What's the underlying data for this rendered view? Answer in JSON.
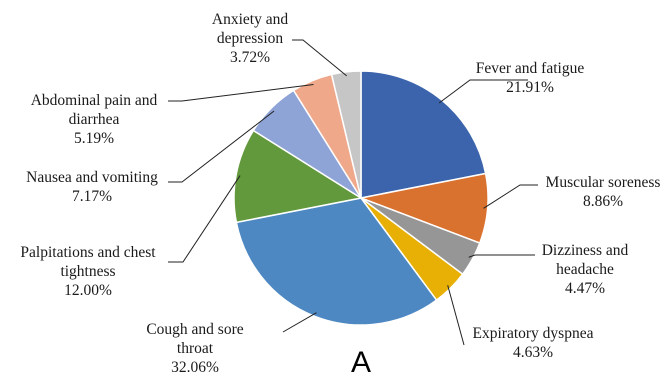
{
  "chart_data": {
    "type": "pie",
    "panel_label": "A",
    "slices": [
      {
        "label": [
          "Fever and fatigue"
        ],
        "value": 21.91,
        "value_label": "21.91%",
        "color": "#3b64ad"
      },
      {
        "label": [
          "Muscular soreness"
        ],
        "value": 8.86,
        "value_label": "8.86%",
        "color": "#d9712f"
      },
      {
        "label": [
          "Dizziness and",
          "headache"
        ],
        "value": 4.47,
        "value_label": "4.47%",
        "color": "#969696"
      },
      {
        "label": [
          "Expiratory dyspnea"
        ],
        "value": 4.63,
        "value_label": "4.63%",
        "color": "#e8b005"
      },
      {
        "label": [
          "Cough and sore",
          "throat"
        ],
        "value": 32.06,
        "value_label": "32.06%",
        "color": "#4e88c2"
      },
      {
        "label": [
          "Palpitations and chest",
          "tightness"
        ],
        "value": 12.0,
        "value_label": "12.00%",
        "color": "#63993d"
      },
      {
        "label": [
          "Nausea and vomiting"
        ],
        "value": 7.17,
        "value_label": "7.17%",
        "color": "#8ea3d6"
      },
      {
        "label": [
          "Abdominal pain and",
          "diarrhea"
        ],
        "value": 5.19,
        "value_label": "5.19%",
        "color": "#f0a88a"
      },
      {
        "label": [
          "Anxiety and",
          "depression"
        ],
        "value": 3.72,
        "value_label": "3.72%",
        "color": "#c6c6c6"
      }
    ]
  }
}
